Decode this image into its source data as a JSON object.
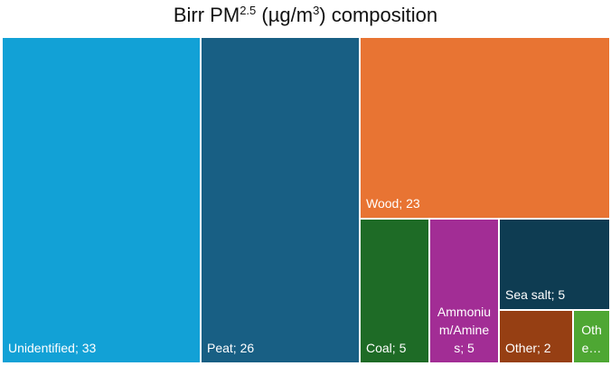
{
  "chart_data": {
    "type": "treemap",
    "title": {
      "prefix": "Birr PM",
      "superscript": "2.5",
      "unit_open": " (µg/m",
      "unit_sup": "3",
      "suffix": ") composition"
    },
    "items": [
      {
        "name": "Unidentified",
        "value": 33,
        "label": "Unidentified; 33",
        "color": "#12a1d6"
      },
      {
        "name": "Peat",
        "value": 26,
        "label": "Peat; 26",
        "color": "#185f84"
      },
      {
        "name": "Wood",
        "value": 23,
        "label": "Wood; 23",
        "color": "#e87433"
      },
      {
        "name": "Coal",
        "value": 5,
        "label": "Coal; 5",
        "color": "#1e6b26"
      },
      {
        "name": "Ammonium/Amines",
        "value": 5,
        "label": "Ammonium/Amines; 5",
        "color": "#a22d95"
      },
      {
        "name": "Sea salt",
        "value": 5,
        "label": "Sea salt; 5",
        "color": "#0e3c52"
      },
      {
        "name": "Other",
        "value": 2,
        "label": "Other; 2",
        "color": "#963f13"
      },
      {
        "name": "Other",
        "value": 1,
        "label": "Oth e…",
        "color": "#4ea733"
      }
    ]
  }
}
